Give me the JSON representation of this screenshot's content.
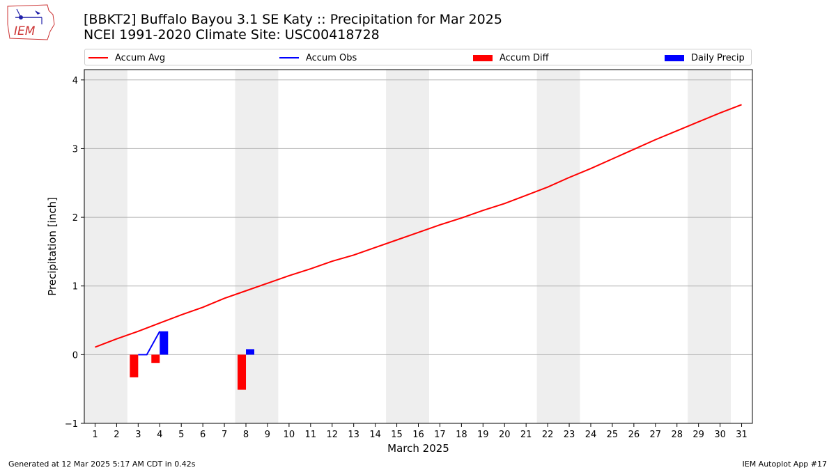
{
  "logo": {
    "text": "IEM"
  },
  "title": {
    "line1": "[BBKT2] Buffalo Bayou 3.1 SE Katy :: Precipitation for Mar 2025",
    "line2": "NCEI 1991-2020 Climate Site: USC00418728"
  },
  "footer": {
    "left": "Generated at 12 Mar 2025 5:17 AM CDT in 0.42s",
    "right": "IEM Autoplot App #17"
  },
  "chart_data": {
    "type": "line",
    "xlabel": "March 2025",
    "ylabel": "Precipitation [inch]",
    "x": [
      1,
      2,
      3,
      4,
      5,
      6,
      7,
      8,
      9,
      10,
      11,
      12,
      13,
      14,
      15,
      16,
      17,
      18,
      19,
      20,
      21,
      22,
      23,
      24,
      25,
      26,
      27,
      28,
      29,
      30,
      31
    ],
    "xlim": [
      0.5,
      31.5
    ],
    "ylim": [
      -1,
      4.15
    ],
    "yticks": [
      -1,
      0,
      1,
      2,
      3,
      4
    ],
    "ytick_labels": [
      "−1",
      "0",
      "1",
      "2",
      "3",
      "4"
    ],
    "grid": true,
    "legend_position": "top",
    "weekend_shading": [
      [
        0.5,
        2.5
      ],
      [
        7.5,
        9.5
      ],
      [
        14.5,
        16.5
      ],
      [
        21.5,
        23.5
      ],
      [
        28.5,
        30.5
      ]
    ],
    "series": [
      {
        "name": "Accum Avg",
        "type": "line",
        "color": "#ff0000",
        "values": [
          0.11,
          0.23,
          0.34,
          0.46,
          0.58,
          0.69,
          0.82,
          0.93,
          1.04,
          1.15,
          1.25,
          1.36,
          1.45,
          1.56,
          1.67,
          1.78,
          1.89,
          1.99,
          2.1,
          2.2,
          2.32,
          2.44,
          2.58,
          2.71,
          2.85,
          2.99,
          3.13,
          3.26,
          3.39,
          3.52,
          3.64
        ]
      },
      {
        "name": "Accum Obs",
        "type": "line",
        "color": "#0000ff",
        "x": [
          3,
          3.4,
          4
        ],
        "values": [
          0.0,
          0.0,
          0.34
        ]
      },
      {
        "name": "Accum Diff",
        "type": "bar",
        "color": "#ff0000",
        "x": [
          3,
          4,
          8
        ],
        "values": [
          -0.33,
          -0.12,
          -0.51
        ]
      },
      {
        "name": "Daily Precip",
        "type": "bar",
        "color": "#0000ff",
        "x": [
          4,
          8
        ],
        "values": [
          0.34,
          0.08
        ]
      }
    ]
  }
}
